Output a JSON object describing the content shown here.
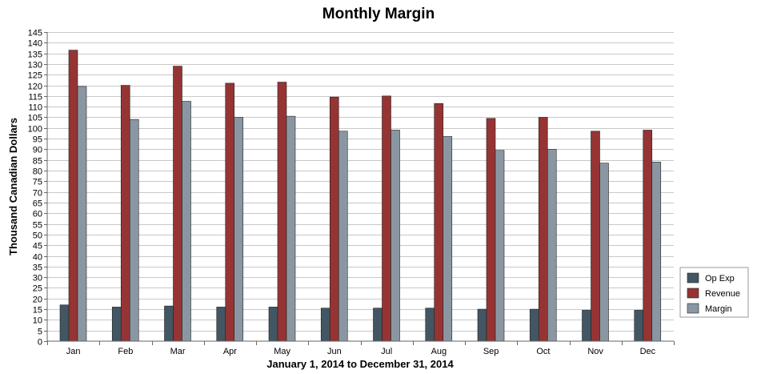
{
  "chart_data": {
    "type": "bar",
    "title": "Monthly Margin",
    "xlabel": "January 1, 2014 to December 31, 2014",
    "ylabel": "Thousand Canadian Dollars",
    "ylim": [
      0,
      145
    ],
    "ytick_step": 5,
    "grid": true,
    "legend_position": "right",
    "categories": [
      "Jan",
      "Feb",
      "Mar",
      "Apr",
      "May",
      "Jun",
      "Jul",
      "Aug",
      "Sep",
      "Oct",
      "Nov",
      "Dec"
    ],
    "series": [
      {
        "name": "Op Exp",
        "color": "#435663",
        "values": [
          17,
          16,
          16.5,
          16,
          16,
          15.5,
          15.5,
          15.5,
          15,
          15,
          14.5,
          14.5
        ]
      },
      {
        "name": "Revenue",
        "color": "#963434",
        "values": [
          136.5,
          120,
          129,
          121,
          121.5,
          114.5,
          115,
          111.5,
          104.5,
          105,
          98.5,
          99
        ]
      },
      {
        "name": "Margin",
        "color": "#8a97a3",
        "values": [
          119.5,
          104,
          112.5,
          105,
          105.5,
          98.5,
          99,
          96,
          89.5,
          90,
          83.5,
          84
        ]
      }
    ]
  }
}
